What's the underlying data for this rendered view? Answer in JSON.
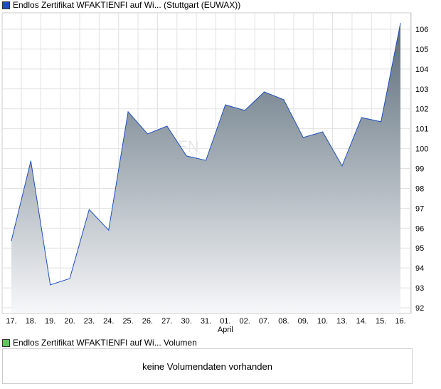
{
  "legend_top": {
    "label": "Endlos Zertifikat WFAKTIENFI auf Wi... (Stuttgart (EUWAX))",
    "color": "#1f4fbf"
  },
  "legend_bottom": {
    "label": "Endlos Zertifikat WFAKTIENFI auf Wi... Volumen",
    "color": "#5cc85c"
  },
  "volume_message": "keine Volumendaten vorhanden",
  "watermark": "FN",
  "chart_data": {
    "type": "area",
    "categories": [
      "17.",
      "18.",
      "19.",
      "20.",
      "23.",
      "24.",
      "25.",
      "26.",
      "27.",
      "30.",
      "31.",
      "01.",
      "02.",
      "07.",
      "08.",
      "09.",
      "10.",
      "13.",
      "14.",
      "15.",
      "16."
    ],
    "month_label": "April",
    "series": [
      {
        "name": "Endlos Zertifikat WFAKTIENFI auf Wi... (Stuttgart (EUWAX))",
        "values": [
          95.37,
          99.38,
          93.15,
          93.47,
          96.94,
          95.9,
          101.85,
          100.74,
          101.13,
          99.63,
          99.41,
          102.2,
          101.92,
          102.85,
          102.46,
          100.56,
          100.84,
          99.13,
          101.56,
          101.35,
          106.3
        ]
      }
    ],
    "ylim": [
      91.7,
      106.9
    ],
    "yticks": [
      92,
      93,
      94,
      95,
      96,
      97,
      98,
      99,
      100,
      101,
      102,
      103,
      104,
      105,
      106
    ],
    "grid": true,
    "line_color": "#1f4fbf"
  }
}
